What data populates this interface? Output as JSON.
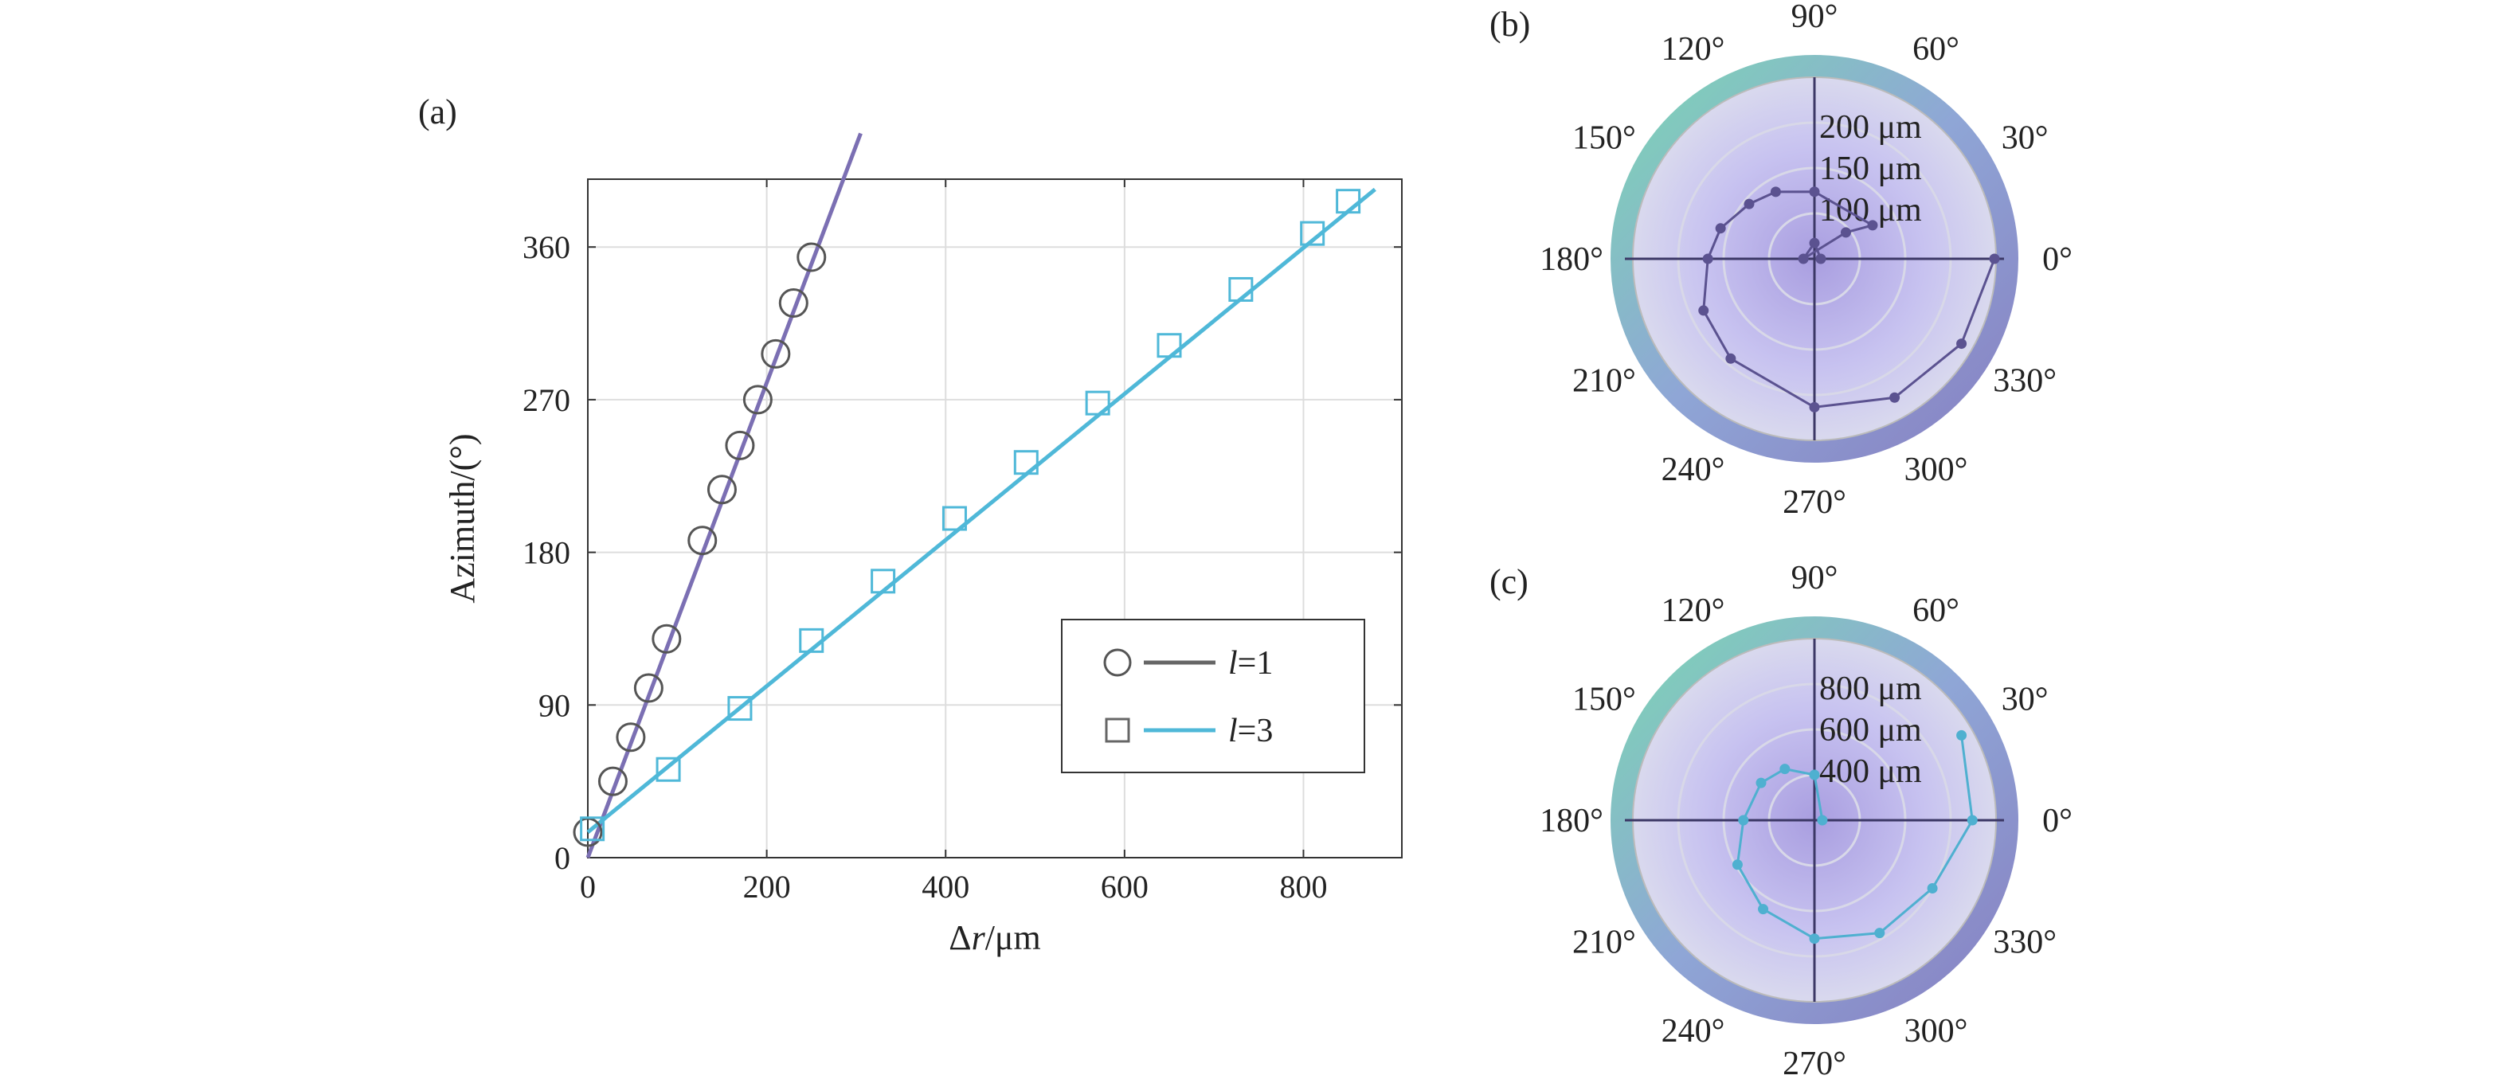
{
  "chart_data": [
    {
      "panel": "(a)",
      "type": "scatter",
      "xlabel_prefix": "Δ",
      "xlabel_var": "r",
      "xlabel_suffix": "/μm",
      "ylabel": "Azimuth/(°)",
      "xlim": [
        0,
        910
      ],
      "ylim": [
        0,
        400
      ],
      "xticks": [
        0,
        200,
        400,
        600,
        800
      ],
      "yticks": [
        0,
        90,
        180,
        270,
        360
      ],
      "grid": true,
      "legend_position": "bottom-right",
      "series": [
        {
          "name_var": "l",
          "name_value": "=1",
          "marker": "circle",
          "line_color": "#7B6FB3",
          "marker_color": "#555555",
          "points": [
            [
              0,
              15
            ],
            [
              28,
              45
            ],
            [
              48,
              71
            ],
            [
              68,
              100
            ],
            [
              88,
              129
            ],
            [
              128,
              187
            ],
            [
              150,
              217
            ],
            [
              170,
              243
            ],
            [
              190,
              270
            ],
            [
              210,
              297
            ],
            [
              230,
              327
            ],
            [
              250,
              354
            ]
          ],
          "fit": [
            [
              0,
              0
            ],
            [
              305,
              427
            ]
          ]
        },
        {
          "name_var": "l",
          "name_value": "=3",
          "marker": "square",
          "line_color": "#4FB8D8",
          "marker_color": "#4FB8D8",
          "points": [
            [
              5,
              17
            ],
            [
              90,
              52
            ],
            [
              170,
              88
            ],
            [
              250,
              128
            ],
            [
              330,
              163
            ],
            [
              410,
              200
            ],
            [
              490,
              233
            ],
            [
              570,
              268
            ],
            [
              650,
              302
            ],
            [
              730,
              335
            ],
            [
              810,
              368
            ],
            [
              850,
              387
            ]
          ],
          "fit": [
            [
              0,
              15
            ],
            [
              880,
              394
            ]
          ]
        }
      ]
    },
    {
      "panel": "(b)",
      "type": "polar",
      "angle_ticks": [
        "0°",
        "30°",
        "60°",
        "90°",
        "120°",
        "150°",
        "180°",
        "210°",
        "240°",
        "270°",
        "300°",
        "330°"
      ],
      "radial_ticks": [
        "100 μm",
        "150 μm",
        "200 μm"
      ],
      "rmax": 230,
      "line_color": "#5B5290",
      "points": [
        [
          0,
          8
        ],
        [
          90,
          20
        ],
        [
          180,
          14
        ],
        [
          40,
          52
        ],
        [
          30,
          85
        ],
        [
          90,
          85
        ],
        [
          120,
          98
        ],
        [
          140,
          108
        ],
        [
          162,
          125
        ],
        [
          180,
          135
        ],
        [
          205,
          155
        ],
        [
          230,
          165
        ],
        [
          270,
          188
        ],
        [
          300,
          203
        ],
        [
          330,
          215
        ],
        [
          0,
          228
        ]
      ]
    },
    {
      "panel": "(c)",
      "type": "polar",
      "angle_ticks": [
        "0°",
        "30°",
        "60°",
        "90°",
        "120°",
        "150°",
        "180°",
        "210°",
        "240°",
        "270°",
        "300°",
        "330°"
      ],
      "radial_ticks": [
        "400 μm",
        "600 μm",
        "800 μm"
      ],
      "rmax": 920,
      "line_color": "#4FB0D0",
      "points": [
        [
          0,
          40
        ],
        [
          90,
          230
        ],
        [
          120,
          300
        ],
        [
          145,
          330
        ],
        [
          180,
          360
        ],
        [
          210,
          450
        ],
        [
          240,
          520
        ],
        [
          270,
          600
        ],
        [
          300,
          660
        ],
        [
          330,
          690
        ],
        [
          360,
          800
        ],
        [
          30,
          860
        ]
      ]
    }
  ]
}
